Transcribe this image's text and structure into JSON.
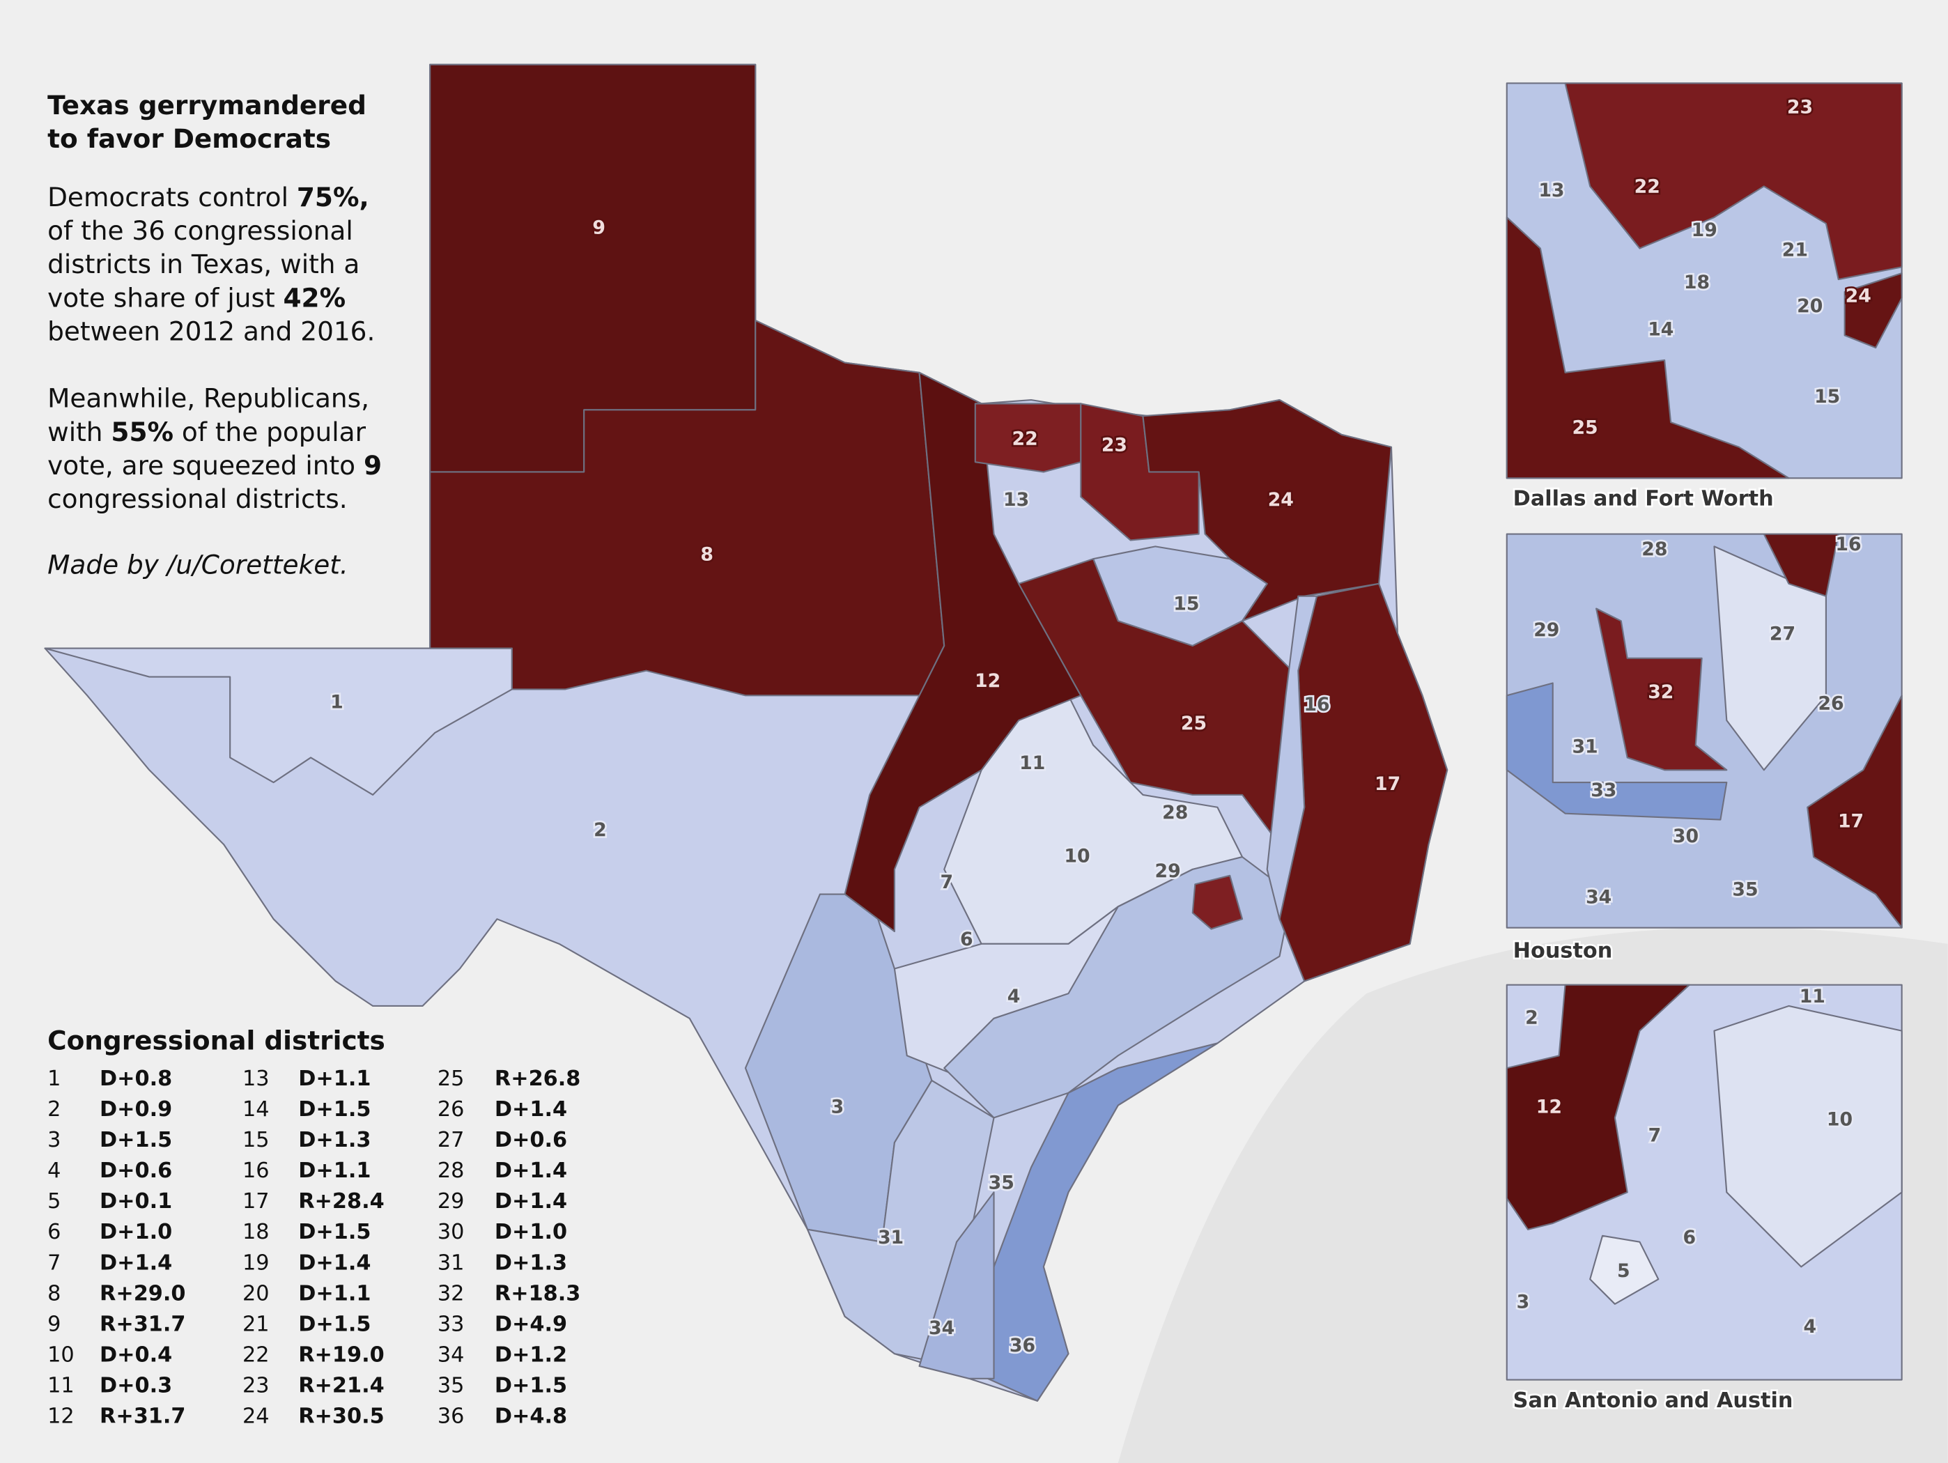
{
  "title": [
    "Texas gerrymandered",
    "to favor Democrats"
  ],
  "paragraph1": [
    [
      "Democrats control ",
      "75%,"
    ],
    [
      "of the 36 congressional"
    ],
    [
      "districts in Texas, with a"
    ],
    [
      "vote share of just ",
      "42%"
    ],
    [
      "between 2012 and 2016."
    ]
  ],
  "paragraph2": [
    [
      "Meanwhile, Republicans,"
    ],
    [
      "with ",
      "55%",
      " of the popular"
    ],
    [
      "vote, are squeezed into ",
      "9"
    ],
    [
      "congressional districts."
    ]
  ],
  "credit": "Made by /u/Coretteket.",
  "legend_title": "Congressional districts",
  "districts": [
    {
      "number": 1,
      "margin": "D+0.8"
    },
    {
      "number": 2,
      "margin": "D+0.9"
    },
    {
      "number": 3,
      "margin": "D+1.5"
    },
    {
      "number": 4,
      "margin": "D+0.6"
    },
    {
      "number": 5,
      "margin": "D+0.1"
    },
    {
      "number": 6,
      "margin": "D+1.0"
    },
    {
      "number": 7,
      "margin": "D+1.4"
    },
    {
      "number": 8,
      "margin": "R+29.0"
    },
    {
      "number": 9,
      "margin": "R+31.7"
    },
    {
      "number": 10,
      "margin": "D+0.4"
    },
    {
      "number": 11,
      "margin": "D+0.3"
    },
    {
      "number": 12,
      "margin": "R+31.7"
    },
    {
      "number": 13,
      "margin": "D+1.1"
    },
    {
      "number": 14,
      "margin": "D+1.5"
    },
    {
      "number": 15,
      "margin": "D+1.3"
    },
    {
      "number": 16,
      "margin": "D+1.1"
    },
    {
      "number": 17,
      "margin": "R+28.4"
    },
    {
      "number": 18,
      "margin": "D+1.5"
    },
    {
      "number": 19,
      "margin": "D+1.4"
    },
    {
      "number": 20,
      "margin": "D+1.1"
    },
    {
      "number": 21,
      "margin": "D+1.5"
    },
    {
      "number": 22,
      "margin": "R+19.0"
    },
    {
      "number": 23,
      "margin": "R+21.4"
    },
    {
      "number": 24,
      "margin": "R+30.5"
    },
    {
      "number": 25,
      "margin": "R+26.8"
    },
    {
      "number": 26,
      "margin": "D+1.4"
    },
    {
      "number": 27,
      "margin": "D+0.6"
    },
    {
      "number": 28,
      "margin": "D+1.4"
    },
    {
      "number": 29,
      "margin": "D+1.4"
    },
    {
      "number": 30,
      "margin": "D+1.0"
    },
    {
      "number": 31,
      "margin": "D+1.3"
    },
    {
      "number": 32,
      "margin": "R+18.3"
    },
    {
      "number": 33,
      "margin": "D+4.9"
    },
    {
      "number": 34,
      "margin": "D+1.2"
    },
    {
      "number": 35,
      "margin": "D+1.5"
    },
    {
      "number": 36,
      "margin": "D+4.8"
    }
  ],
  "insets": [
    "Dallas and Fort Worth",
    "Houston",
    "San Antonio and Austin"
  ]
}
